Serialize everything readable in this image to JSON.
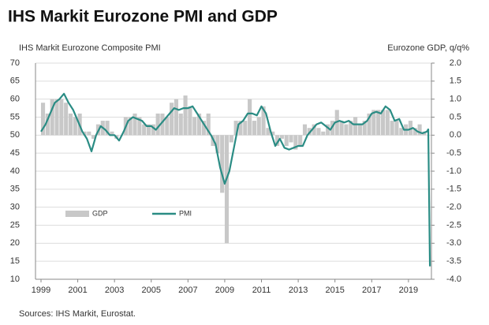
{
  "chart_data": {
    "type": "line",
    "title": "IHS Markit Eurozone PMI and GDP",
    "y_label": "IHS Markit Eurozone Composite PMI",
    "y2_label": "Eurozone GDP, q/q%",
    "source": "Sources: IHS Markit, Eurostat.",
    "xlim": [
      1998.7,
      2020.25
    ],
    "xticks": [
      1999,
      2001,
      2003,
      2005,
      2007,
      2009,
      2011,
      2013,
      2015,
      2017,
      2019
    ],
    "ylim": [
      10,
      70
    ],
    "yticks": [
      10,
      15,
      20,
      25,
      30,
      35,
      40,
      45,
      50,
      55,
      60,
      65,
      70
    ],
    "y2lim": [
      -4,
      2
    ],
    "y2ticks": [
      {
        "value": -4,
        "label": "-4.0"
      },
      -3.5,
      {
        "value": -3,
        "label": "-3.0"
      },
      -2.5,
      {
        "value": -2,
        "label": "-2.0"
      },
      -1.5,
      {
        "value": -1,
        "label": "-1.0"
      },
      -0.5,
      {
        "value": 0,
        "label": "0.0"
      },
      0.5,
      {
        "value": 1,
        "label": "1.0"
      },
      1.5,
      {
        "value": 2,
        "label": "2.0"
      }
    ],
    "grid": true,
    "legend": "lower left",
    "series": [
      {
        "name": "GDP",
        "type": "bar",
        "axis": "y2",
        "color": "#c8c8c8",
        "x": [
          1999,
          1999.25,
          1999.5,
          1999.75,
          2000,
          2000.25,
          2000.5,
          2000.75,
          2001,
          2001.25,
          2001.5,
          2001.75,
          2002,
          2002.25,
          2002.5,
          2002.75,
          2003,
          2003.25,
          2003.5,
          2003.75,
          2004,
          2004.25,
          2004.5,
          2004.75,
          2005,
          2005.25,
          2005.5,
          2005.75,
          2006,
          2006.25,
          2006.5,
          2006.75,
          2007,
          2007.25,
          2007.5,
          2007.75,
          2008,
          2008.25,
          2008.5,
          2008.75,
          2009,
          2009.25,
          2009.5,
          2009.75,
          2010,
          2010.25,
          2010.5,
          2010.75,
          2011,
          2011.25,
          2011.5,
          2011.75,
          2012,
          2012.25,
          2012.5,
          2012.75,
          2013,
          2013.25,
          2013.5,
          2013.75,
          2014,
          2014.25,
          2014.5,
          2014.75,
          2015,
          2015.25,
          2015.5,
          2015.75,
          2016,
          2016.25,
          2016.5,
          2016.75,
          2017,
          2017.25,
          2017.5,
          2017.75,
          2018,
          2018.25,
          2018.5,
          2018.75,
          2019,
          2019.25,
          2019.5,
          2019.75
        ],
        "values": [
          0.9,
          0.6,
          1.0,
          1.0,
          1.0,
          0.9,
          0.6,
          0.5,
          0.6,
          0.1,
          0.1,
          -0.1,
          0.3,
          0.4,
          0.4,
          0.1,
          -0.1,
          0.0,
          0.5,
          0.5,
          0.6,
          0.5,
          0.3,
          0.3,
          0.3,
          0.6,
          0.6,
          0.5,
          0.9,
          1.0,
          0.6,
          1.1,
          0.8,
          0.5,
          0.6,
          0.4,
          0.6,
          -0.3,
          -0.5,
          -1.6,
          -3.0,
          -0.2,
          0.4,
          0.4,
          0.4,
          1.0,
          0.4,
          0.5,
          0.8,
          0.2,
          0.1,
          -0.3,
          -0.1,
          -0.3,
          -0.2,
          -0.4,
          -0.3,
          0.3,
          0.2,
          0.3,
          0.2,
          0.1,
          0.3,
          0.4,
          0.7,
          0.4,
          0.3,
          0.4,
          0.5,
          0.3,
          0.4,
          0.6,
          0.7,
          0.7,
          0.7,
          0.7,
          0.4,
          0.4,
          0.2,
          0.3,
          0.4,
          0.2,
          0.3,
          0.1
        ]
      },
      {
        "name": "PMI",
        "type": "line",
        "axis": "y",
        "color": "#2a8c84",
        "x": [
          1999,
          1999.25,
          1999.5,
          1999.75,
          2000,
          2000.25,
          2000.5,
          2000.75,
          2001,
          2001.25,
          2001.5,
          2001.75,
          2002,
          2002.25,
          2002.5,
          2002.75,
          2003,
          2003.25,
          2003.5,
          2003.75,
          2004,
          2004.25,
          2004.5,
          2004.75,
          2005,
          2005.25,
          2005.5,
          2005.75,
          2006,
          2006.25,
          2006.5,
          2006.75,
          2007,
          2007.25,
          2007.5,
          2007.75,
          2008,
          2008.25,
          2008.5,
          2008.75,
          2009,
          2009.25,
          2009.5,
          2009.75,
          2010,
          2010.25,
          2010.5,
          2010.75,
          2011,
          2011.25,
          2011.5,
          2011.75,
          2012,
          2012.25,
          2012.5,
          2012.75,
          2013,
          2013.25,
          2013.5,
          2013.75,
          2014,
          2014.25,
          2014.5,
          2014.75,
          2015,
          2015.25,
          2015.5,
          2015.75,
          2016,
          2016.25,
          2016.5,
          2016.75,
          2017,
          2017.25,
          2017.5,
          2017.75,
          2018,
          2018.25,
          2018.5,
          2018.75,
          2019,
          2019.25,
          2019.5,
          2019.75,
          2020,
          2020.08,
          2020.17
        ],
        "values": [
          51,
          53,
          56,
          59,
          60,
          61.5,
          59,
          57,
          54,
          51,
          49,
          45.5,
          50,
          52.5,
          51.5,
          50,
          50,
          48.5,
          51,
          54,
          55,
          54.5,
          54,
          52.5,
          52.5,
          51.5,
          53,
          54.5,
          56,
          57.5,
          57,
          57.5,
          57.5,
          58,
          56,
          54,
          52,
          50,
          47.5,
          41,
          36.5,
          40,
          46.5,
          53,
          54,
          56,
          56,
          55.5,
          58,
          56,
          51,
          47,
          49,
          46.5,
          46,
          46.5,
          47,
          47,
          50,
          51.5,
          53,
          53.5,
          52.5,
          51.5,
          53.5,
          54,
          53.5,
          54,
          53,
          53,
          53,
          54,
          56,
          56.5,
          56,
          58,
          57,
          54,
          54.5,
          51.5,
          51.5,
          52,
          51,
          50.5,
          51,
          51.6,
          13.6
        ]
      }
    ]
  }
}
